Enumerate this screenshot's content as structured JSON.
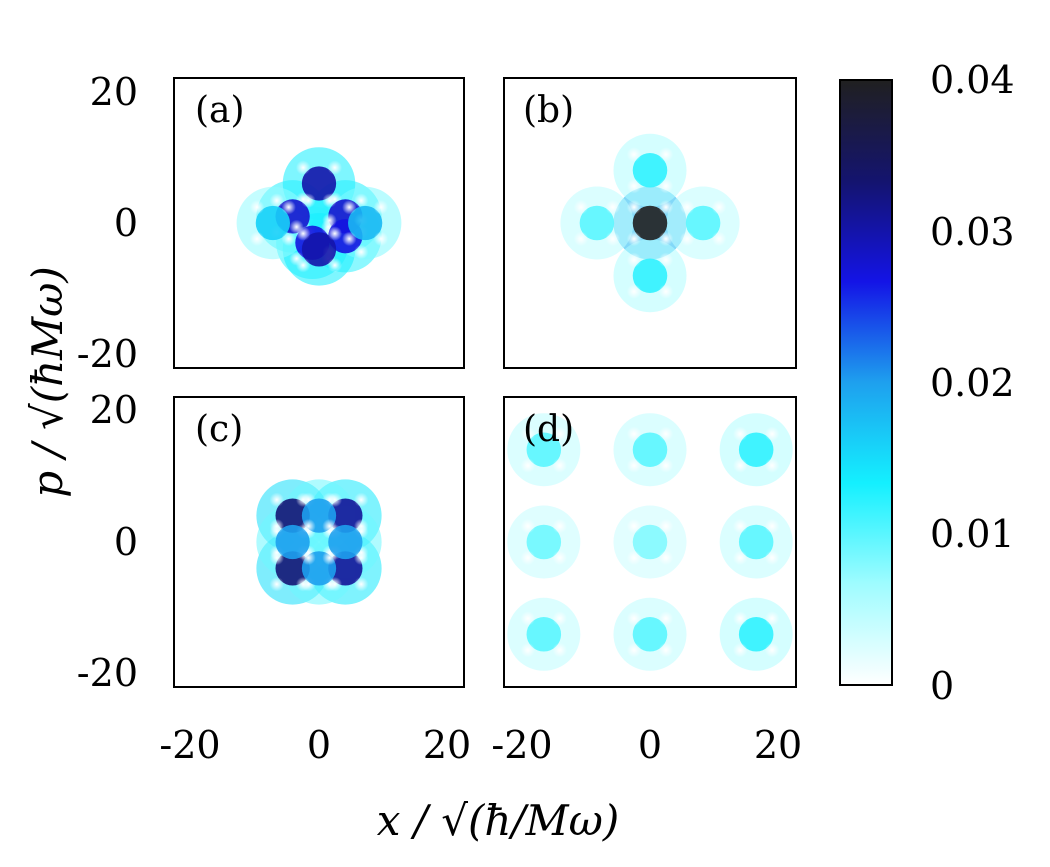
{
  "chart_data": {
    "type": "heatmap",
    "title": "",
    "xlabel": "x / √(ħ/Mω)",
    "ylabel": "p / √(ħMω)",
    "xlim": [
      -22,
      22
    ],
    "ylim": [
      -22,
      22
    ],
    "x_ticks": [
      "-20",
      "0",
      "20"
    ],
    "y_ticks": [
      "20",
      "0",
      "-20"
    ],
    "colorbar": {
      "range": [
        0,
        0.04
      ],
      "ticks": [
        "0.04",
        "0.03",
        "0.02",
        "0.01",
        "0"
      ],
      "colors": [
        "#ffffff",
        "#9ffcff",
        "#14f0ff",
        "#1ea0ee",
        "#1414e6",
        "#14146e",
        "#202020"
      ]
    },
    "panels": [
      {
        "label": "(a)",
        "pattern": "diamond cross-shaped interference pattern centred at origin",
        "peak": 0.032,
        "spots": [
          {
            "x": 0,
            "y": 6,
            "v": 0.03
          },
          {
            "x": -4,
            "y": 1,
            "v": 0.028
          },
          {
            "x": 4,
            "y": 1,
            "v": 0.028
          },
          {
            "x": -1,
            "y": -3,
            "v": 0.027
          },
          {
            "x": 4,
            "y": -2,
            "v": 0.027
          },
          {
            "x": 0,
            "y": -4,
            "v": 0.03
          },
          {
            "x": 7,
            "y": 0,
            "v": 0.018
          },
          {
            "x": -7,
            "y": 0,
            "v": 0.016
          }
        ]
      },
      {
        "label": "(b)",
        "pattern": "sharp central peak with faint diamond arms",
        "peak": 0.04,
        "spots": [
          {
            "x": 0,
            "y": 0,
            "v": 0.04
          },
          {
            "x": 0,
            "y": 8,
            "v": 0.012
          },
          {
            "x": 0,
            "y": -8,
            "v": 0.012
          },
          {
            "x": 8,
            "y": 0,
            "v": 0.01
          },
          {
            "x": -8,
            "y": 0,
            "v": 0.01
          }
        ]
      },
      {
        "label": "(c)",
        "pattern": "square lattice with four dark corner spots",
        "peak": 0.034,
        "spots": [
          {
            "x": -4,
            "y": 4,
            "v": 0.033
          },
          {
            "x": 4,
            "y": 4,
            "v": 0.031
          },
          {
            "x": -4,
            "y": -4,
            "v": 0.033
          },
          {
            "x": 4,
            "y": -4,
            "v": 0.031
          },
          {
            "x": 0,
            "y": 4,
            "v": 0.02
          },
          {
            "x": 0,
            "y": -4,
            "v": 0.02
          },
          {
            "x": -4,
            "y": 0,
            "v": 0.02
          },
          {
            "x": 4,
            "y": 0,
            "v": 0.02
          }
        ]
      },
      {
        "label": "(d)",
        "pattern": "3x3 grid of faint lattice clusters spread over phase space",
        "peak": 0.012,
        "spots": [
          {
            "x": -16,
            "y": 14,
            "v": 0.01
          },
          {
            "x": 0,
            "y": 14,
            "v": 0.01
          },
          {
            "x": 16,
            "y": 14,
            "v": 0.012
          },
          {
            "x": -16,
            "y": 0,
            "v": 0.009
          },
          {
            "x": 0,
            "y": 0,
            "v": 0.008
          },
          {
            "x": 16,
            "y": 0,
            "v": 0.01
          },
          {
            "x": -16,
            "y": -14,
            "v": 0.01
          },
          {
            "x": 0,
            "y": -14,
            "v": 0.01
          },
          {
            "x": 16,
            "y": -14,
            "v": 0.012
          }
        ]
      }
    ]
  }
}
